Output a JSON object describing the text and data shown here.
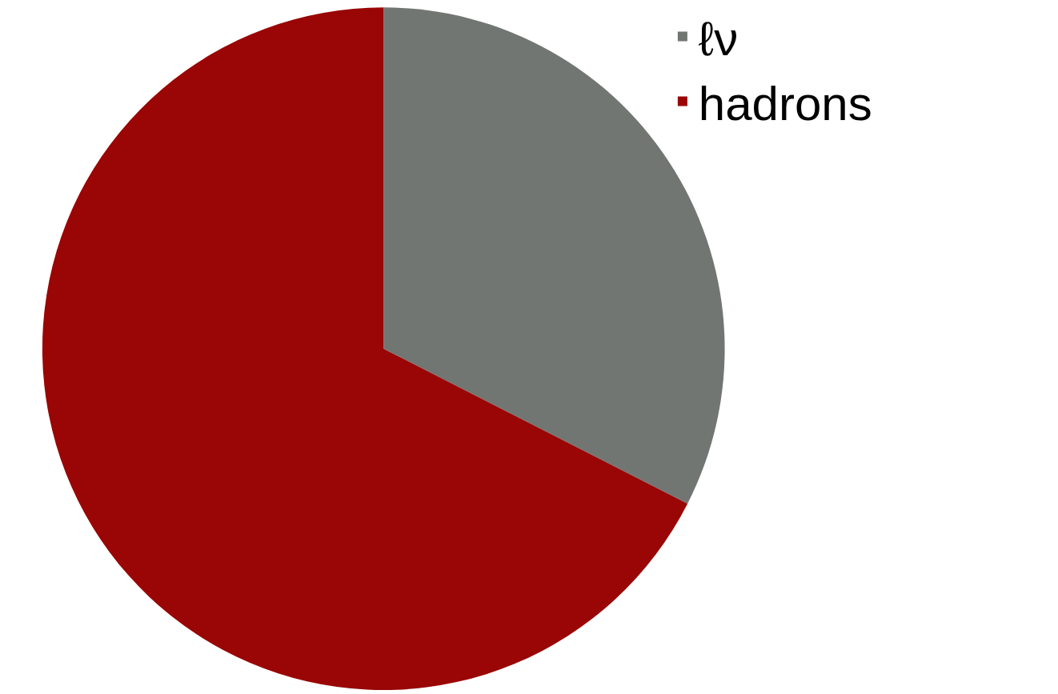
{
  "chart_data": {
    "type": "pie",
    "categories": [
      "ℓν",
      "hadrons"
    ],
    "values": [
      32.5,
      67.5
    ],
    "colors": [
      "#717673",
      "#990605"
    ],
    "legend": "top right"
  }
}
